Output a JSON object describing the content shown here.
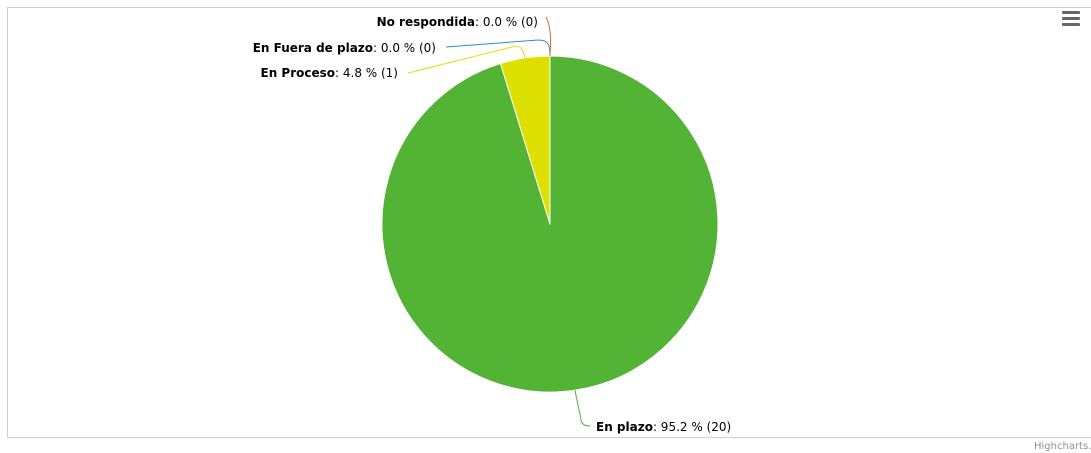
{
  "chart_data": {
    "type": "pie",
    "title": "",
    "label_format": "{name}: {percent} % ({count})",
    "slices": [
      {
        "name": "En plazo",
        "value": 20,
        "percent": "95.2",
        "count": "20",
        "color": "#52b334"
      },
      {
        "name": "En Proceso",
        "value": 1,
        "percent": "4.8",
        "count": "1",
        "color": "#dde000"
      },
      {
        "name": "En Fuera de plazo",
        "value": 0,
        "percent": "0.0",
        "count": "0",
        "color": "#2e8bc0"
      },
      {
        "name": "No respondida",
        "value": 0,
        "percent": "0.0",
        "count": "0",
        "color": "#e8633a"
      }
    ]
  },
  "toolbar": {
    "menu_icon": "hamburger-menu-icon"
  },
  "credits": {
    "text": "Highcharts.com"
  }
}
